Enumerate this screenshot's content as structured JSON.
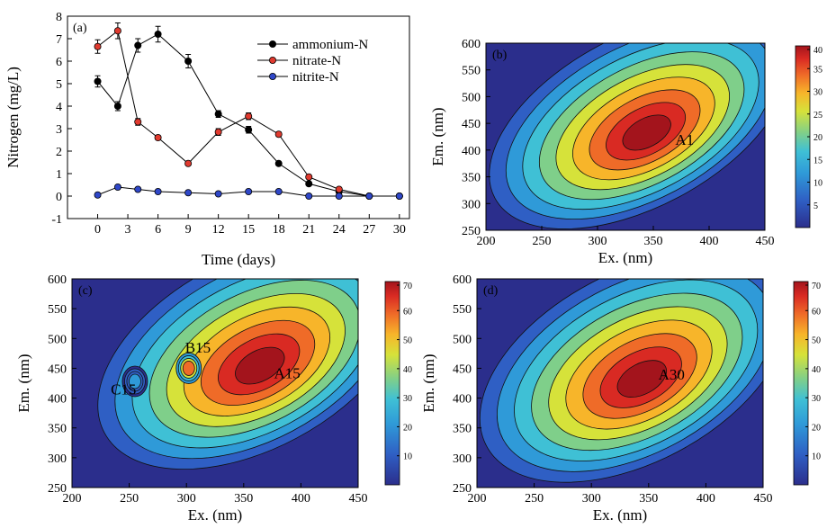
{
  "chart_data": [
    {
      "type": "line",
      "panel_label": "(a)",
      "xlabel": "Time (days)",
      "ylabel": "Nitrogen (mg/L)",
      "xlim": [
        -3,
        31
      ],
      "ylim": [
        -1,
        8
      ],
      "xticks": [
        "0",
        "3",
        "6",
        "9",
        "12",
        "15",
        "18",
        "21",
        "24",
        "27",
        "30"
      ],
      "yticks": [
        "-1",
        "0",
        "1",
        "2",
        "3",
        "4",
        "5",
        "6",
        "7",
        "8"
      ],
      "legend_position": "top-right",
      "series": [
        {
          "name": "ammonium-N",
          "color": "#000000",
          "x": [
            0,
            2,
            4,
            6,
            9,
            12,
            15,
            18,
            21,
            24,
            27,
            30
          ],
          "y": [
            5.1,
            4.0,
            6.7,
            7.2,
            6.0,
            3.65,
            2.95,
            1.45,
            0.55,
            0.2,
            0.0,
            0.0
          ],
          "err": [
            0.25,
            0.2,
            0.3,
            0.35,
            0.3,
            0.15,
            0.15,
            0.05,
            0.05,
            0.05,
            0,
            0
          ]
        },
        {
          "name": "nitrate-N",
          "color": "#e03a2f",
          "x": [
            0,
            2,
            4,
            6,
            9,
            12,
            15,
            18,
            21,
            24,
            27,
            30
          ],
          "y": [
            6.65,
            7.35,
            3.3,
            2.6,
            1.45,
            2.85,
            3.55,
            2.75,
            0.85,
            0.3,
            0.0,
            0.0
          ],
          "err": [
            0.3,
            0.35,
            0.15,
            0.1,
            0.05,
            0.15,
            0.15,
            0.1,
            0.05,
            0.05,
            0,
            0
          ]
        },
        {
          "name": "nitrite-N",
          "color": "#2f47c8",
          "x": [
            0,
            2,
            4,
            6,
            9,
            12,
            15,
            18,
            21,
            24,
            27,
            30
          ],
          "y": [
            0.05,
            0.4,
            0.3,
            0.2,
            0.15,
            0.1,
            0.2,
            0.2,
            0.0,
            0.0,
            0.0,
            0.0
          ],
          "err": [
            0.03,
            0.05,
            0.03,
            0.03,
            0.03,
            0.03,
            0.03,
            0.03,
            0,
            0,
            0,
            0
          ]
        }
      ]
    },
    {
      "type": "heatmap",
      "panel_label": "(b)",
      "xlabel": "Ex. (nm)",
      "ylabel": "Em. (nm)",
      "xlim": [
        200,
        450
      ],
      "ylim": [
        250,
        600
      ],
      "xticks": [
        "200",
        "250",
        "300",
        "350",
        "400",
        "450"
      ],
      "yticks": [
        "250",
        "300",
        "350",
        "400",
        "450",
        "500",
        "550",
        "600"
      ],
      "colorbar_ticks": [
        "5",
        "10",
        "15",
        "20",
        "25",
        "30",
        "35",
        "40"
      ],
      "zmax": 40,
      "peaks": [
        {
          "label": "A1",
          "ex": 345,
          "em": 430,
          "peak_value": 40,
          "label_ex": 378,
          "label_em": 420
        }
      ]
    },
    {
      "type": "heatmap",
      "panel_label": "(c)",
      "xlabel": "Ex. (nm)",
      "ylabel": "Em. (nm)",
      "xlim": [
        200,
        450
      ],
      "ylim": [
        250,
        600
      ],
      "xticks": [
        "200",
        "250",
        "300",
        "350",
        "400",
        "450"
      ],
      "yticks": [
        "250",
        "300",
        "350",
        "400",
        "450",
        "500",
        "550",
        "600"
      ],
      "colorbar_ticks": [
        "10",
        "20",
        "30",
        "40",
        "50",
        "60",
        "70"
      ],
      "zmax": 70,
      "peaks": [
        {
          "label": "A15",
          "ex": 365,
          "em": 452,
          "peak_value": 70,
          "label_ex": 388,
          "label_em": 442
        },
        {
          "label": "B15",
          "ex": 302,
          "em": 450,
          "peak_value": 52,
          "label_ex": 310,
          "label_em": 485
        },
        {
          "label": "C15",
          "ex": 255,
          "em": 428,
          "peak_value": 12,
          "label_ex": 245,
          "label_em": 415
        }
      ]
    },
    {
      "type": "heatmap",
      "panel_label": "(d)",
      "xlabel": "Ex. (nm)",
      "ylabel": "Em. (nm)",
      "xlim": [
        200,
        450
      ],
      "ylim": [
        250,
        600
      ],
      "xticks": [
        "200",
        "250",
        "300",
        "350",
        "400",
        "450"
      ],
      "yticks": [
        "250",
        "300",
        "350",
        "400",
        "450",
        "500",
        "550",
        "600"
      ],
      "colorbar_ticks": [
        "10",
        "20",
        "30",
        "40",
        "50",
        "60",
        "70"
      ],
      "zmax": 70,
      "peaks": [
        {
          "label": "A30",
          "ex": 345,
          "em": 430,
          "peak_value": 70,
          "label_ex": 370,
          "label_em": 440
        }
      ]
    }
  ]
}
